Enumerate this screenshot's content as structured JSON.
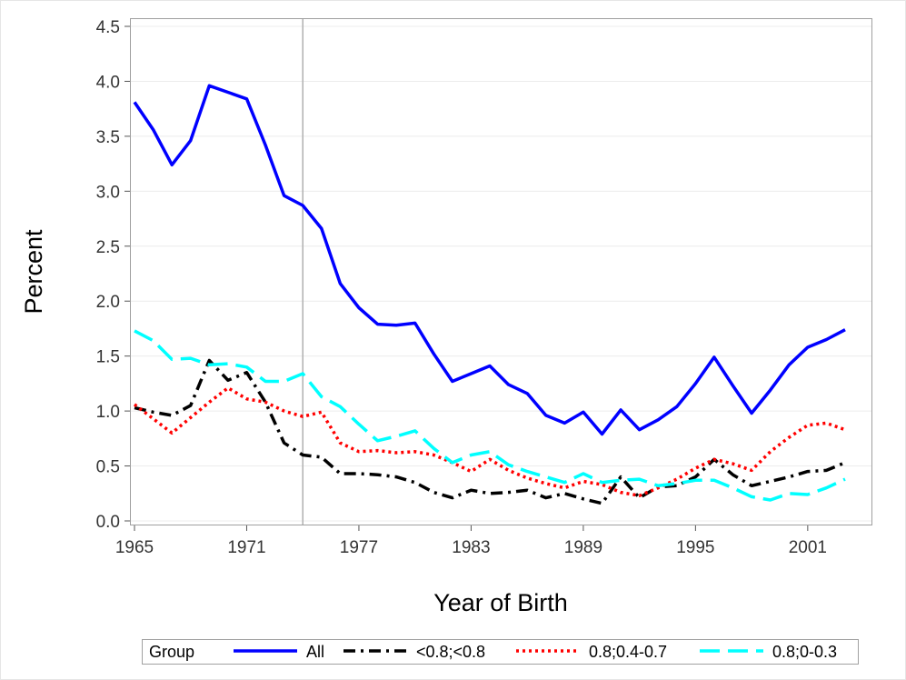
{
  "chart_data": {
    "type": "line",
    "xlabel": "Year of Birth",
    "ylabel": "Percent",
    "xlim": [
      1965,
      2003
    ],
    "ylim": [
      0,
      4.5
    ],
    "x_ticks": [
      1965,
      1971,
      1977,
      1983,
      1989,
      1995,
      2001
    ],
    "y_ticks": [
      0.0,
      0.5,
      1.0,
      1.5,
      2.0,
      2.5,
      3.0,
      3.5,
      4.0,
      4.5
    ],
    "y_tick_labels": [
      "0.0",
      "0.5",
      "1.0",
      "1.5",
      "2.0",
      "2.5",
      "3.0",
      "3.5",
      "4.0",
      "4.5"
    ],
    "reference_line_x": 1974,
    "grid": "horizontal",
    "legend": {
      "title": "Group",
      "position": "bottom"
    },
    "x": [
      1965,
      1966,
      1967,
      1968,
      1969,
      1970,
      1971,
      1972,
      1973,
      1974,
      1975,
      1976,
      1977,
      1978,
      1979,
      1980,
      1981,
      1982,
      1983,
      1984,
      1985,
      1986,
      1987,
      1988,
      1989,
      1990,
      1991,
      1992,
      1993,
      1994,
      1995,
      1996,
      1997,
      1998,
      1999,
      2000,
      2001,
      2002,
      2003
    ],
    "series": [
      {
        "name": "All",
        "color": "#0000ff",
        "dash": "solid",
        "values": [
          3.81,
          3.56,
          3.24,
          3.46,
          3.96,
          3.9,
          3.84,
          3.42,
          2.96,
          2.87,
          2.66,
          2.16,
          1.94,
          1.79,
          1.78,
          1.8,
          1.52,
          1.27,
          1.34,
          1.41,
          1.24,
          1.16,
          0.96,
          0.89,
          0.99,
          0.79,
          1.01,
          0.83,
          0.92,
          1.04,
          1.25,
          1.49,
          1.23,
          0.98,
          1.19,
          1.42,
          1.58,
          1.65,
          1.74
        ]
      },
      {
        "name": "<0.8;<0.8",
        "color": "#000000",
        "dash": "dashdot",
        "values": [
          1.03,
          0.99,
          0.96,
          1.05,
          1.46,
          1.28,
          1.35,
          1.08,
          0.71,
          0.6,
          0.58,
          0.43,
          0.43,
          0.42,
          0.4,
          0.35,
          0.26,
          0.21,
          0.28,
          0.25,
          0.26,
          0.28,
          0.21,
          0.25,
          0.2,
          0.16,
          0.4,
          0.21,
          0.31,
          0.32,
          0.4,
          0.56,
          0.42,
          0.32,
          0.36,
          0.4,
          0.45,
          0.46,
          0.53
        ]
      },
      {
        "name": "0.8;0.4-0.7",
        "color": "#ff0000",
        "dash": "dotted",
        "values": [
          1.06,
          0.93,
          0.8,
          0.94,
          1.08,
          1.21,
          1.11,
          1.08,
          1.0,
          0.95,
          0.99,
          0.71,
          0.63,
          0.64,
          0.62,
          0.63,
          0.6,
          0.53,
          0.45,
          0.56,
          0.46,
          0.39,
          0.34,
          0.3,
          0.36,
          0.33,
          0.26,
          0.23,
          0.3,
          0.38,
          0.48,
          0.56,
          0.52,
          0.46,
          0.63,
          0.76,
          0.87,
          0.89,
          0.83
        ]
      },
      {
        "name": "0.8;0-0.3",
        "color": "#00ffff",
        "dash": "longdash",
        "values": [
          1.73,
          1.64,
          1.47,
          1.48,
          1.42,
          1.43,
          1.4,
          1.27,
          1.27,
          1.34,
          1.13,
          1.04,
          0.88,
          0.73,
          0.77,
          0.82,
          0.66,
          0.53,
          0.6,
          0.63,
          0.51,
          0.45,
          0.4,
          0.35,
          0.43,
          0.35,
          0.37,
          0.38,
          0.32,
          0.34,
          0.37,
          0.37,
          0.3,
          0.22,
          0.19,
          0.25,
          0.24,
          0.3,
          0.38
        ]
      }
    ]
  }
}
